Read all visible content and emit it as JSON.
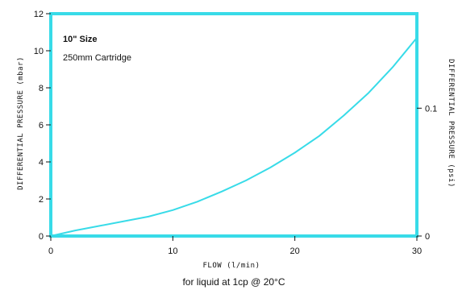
{
  "chart_data": {
    "type": "line",
    "title": "10\" Size",
    "subtitle": "250mm Cartridge",
    "xlabel": "FLOW  (l/min)",
    "xlabel_note": "for liquid at 1cp @ 20°C",
    "ylabel": "DIFFERENTIAL  PRESSURE  (mbar)",
    "y2label": "DIFFERENTIAL  PRESSURE  (psi)",
    "xlim": [
      0,
      30
    ],
    "ylim": [
      0,
      12
    ],
    "x_ticks": [
      "0",
      "10",
      "20",
      "30"
    ],
    "y_ticks": [
      "0",
      "2",
      "4",
      "6",
      "8",
      "10",
      "12"
    ],
    "y2_ticks": [
      {
        "label": "0",
        "mbar": 0
      },
      {
        "label": "0.1",
        "mbar": 6.9
      }
    ],
    "grid": false,
    "line_color": "#38dbe8",
    "series": [
      {
        "x": [
          0,
          2,
          4,
          6,
          8,
          10,
          12,
          14,
          16,
          18,
          20,
          22,
          24,
          26,
          28,
          30
        ],
        "y": [
          0,
          0.3,
          0.55,
          0.8,
          1.05,
          1.4,
          1.85,
          2.4,
          3.0,
          3.7,
          4.5,
          5.4,
          6.5,
          7.7,
          9.1,
          10.7
        ]
      }
    ]
  }
}
